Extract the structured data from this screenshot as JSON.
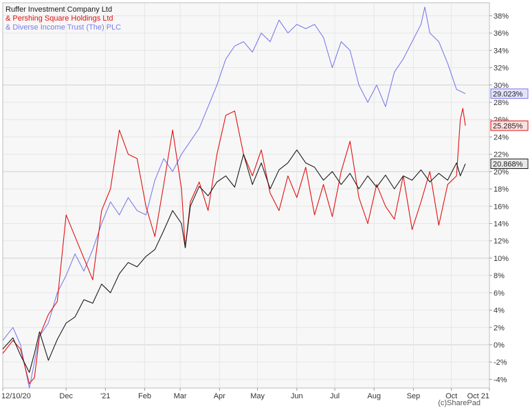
{
  "chart_data": {
    "type": "line",
    "title": "",
    "xlabel": "",
    "ylabel": "",
    "y_unit": "%",
    "ylim": [
      -5,
      39.5
    ],
    "y_ticks": [
      -4,
      -2,
      0,
      2,
      4,
      6,
      8,
      10,
      12,
      14,
      16,
      18,
      20,
      22,
      24,
      26,
      28,
      30,
      32,
      34,
      36,
      38
    ],
    "y_tick_labels": [
      "-4%",
      "-2%",
      "0%",
      "2%",
      "4%",
      "6%",
      "8%",
      "10%",
      "12%",
      "14%",
      "16%",
      "18%",
      "20%",
      "22%",
      "24%",
      "26%",
      "28%",
      "30%",
      "32%",
      "34%",
      "36%",
      "38%"
    ],
    "y_axis_side": "right",
    "grid": true,
    "legend_position": "top-left",
    "x_ticks": [
      {
        "label": "12/10/20",
        "date": "2020-10-12"
      },
      {
        "label": "Dec",
        "date": "2020-12-01"
      },
      {
        "label": "'21",
        "date": "2021-01-01"
      },
      {
        "label": "Feb",
        "date": "2021-02-01"
      },
      {
        "label": "Mar",
        "date": "2021-03-01"
      },
      {
        "label": "Apr",
        "date": "2021-04-01"
      },
      {
        "label": "May",
        "date": "2021-05-01"
      },
      {
        "label": "Jun",
        "date": "2021-06-01"
      },
      {
        "label": "Jul",
        "date": "2021-07-01"
      },
      {
        "label": "Aug",
        "date": "2021-08-01"
      },
      {
        "label": "Sep",
        "date": "2021-09-01"
      },
      {
        "label": "Oct",
        "date": "2021-10-01"
      },
      {
        "label": "Oct 21",
        "date": "2021-10-31"
      }
    ],
    "x_range": [
      "2020-10-12",
      "2021-10-31"
    ],
    "series": [
      {
        "name": "Ruffer Investment Company Ltd",
        "legend_label": "Ruffer Investment Company Ltd",
        "color": "#1a1a1a",
        "last_value_label": "20.868%",
        "points": [
          [
            "2020-10-12",
            -0.5
          ],
          [
            "2020-10-20",
            0.8
          ],
          [
            "2020-10-26",
            -1.2
          ],
          [
            "2020-11-02",
            -3.2
          ],
          [
            "2020-11-06",
            -1.0
          ],
          [
            "2020-11-10",
            1.5
          ],
          [
            "2020-11-17",
            -1.8
          ],
          [
            "2020-11-24",
            0.6
          ],
          [
            "2020-12-01",
            2.5
          ],
          [
            "2020-12-08",
            3.2
          ],
          [
            "2020-12-15",
            5.2
          ],
          [
            "2020-12-22",
            4.8
          ],
          [
            "2020-12-29",
            7.0
          ],
          [
            "2021-01-05",
            6.0
          ],
          [
            "2021-01-12",
            8.2
          ],
          [
            "2021-01-19",
            9.5
          ],
          [
            "2021-01-26",
            9.0
          ],
          [
            "2021-02-02",
            10.2
          ],
          [
            "2021-02-09",
            11.0
          ],
          [
            "2021-02-16",
            13.2
          ],
          [
            "2021-02-23",
            15.5
          ],
          [
            "2021-03-02",
            14.0
          ],
          [
            "2021-03-05",
            11.2
          ],
          [
            "2021-03-09",
            16.0
          ],
          [
            "2021-03-16",
            18.3
          ],
          [
            "2021-03-23",
            17.2
          ],
          [
            "2021-03-30",
            18.8
          ],
          [
            "2021-04-06",
            19.5
          ],
          [
            "2021-04-13",
            18.2
          ],
          [
            "2021-04-20",
            22.0
          ],
          [
            "2021-04-27",
            18.5
          ],
          [
            "2021-05-04",
            21.0
          ],
          [
            "2021-05-11",
            18.0
          ],
          [
            "2021-05-18",
            20.2
          ],
          [
            "2021-05-25",
            21.0
          ],
          [
            "2021-06-01",
            22.5
          ],
          [
            "2021-06-08",
            21.0
          ],
          [
            "2021-06-15",
            20.5
          ],
          [
            "2021-06-22",
            19.0
          ],
          [
            "2021-06-29",
            20.0
          ],
          [
            "2021-07-06",
            18.5
          ],
          [
            "2021-07-13",
            19.8
          ],
          [
            "2021-07-20",
            18.0
          ],
          [
            "2021-07-27",
            19.5
          ],
          [
            "2021-08-03",
            18.2
          ],
          [
            "2021-08-10",
            19.6
          ],
          [
            "2021-08-17",
            18.0
          ],
          [
            "2021-08-24",
            19.5
          ],
          [
            "2021-08-31",
            19.0
          ],
          [
            "2021-09-07",
            20.2
          ],
          [
            "2021-09-14",
            18.8
          ],
          [
            "2021-09-21",
            19.8
          ],
          [
            "2021-09-28",
            19.0
          ],
          [
            "2021-10-05",
            21.0
          ],
          [
            "2021-10-08",
            19.5
          ],
          [
            "2021-10-12",
            20.9
          ]
        ]
      },
      {
        "name": "Pershing Square Holdings Ltd",
        "legend_label": "& Pershing Square Holdings Ltd",
        "color": "#e01010",
        "last_value_label": "25.285%",
        "points": [
          [
            "2020-10-12",
            -1.0
          ],
          [
            "2020-10-20",
            0.5
          ],
          [
            "2020-10-26",
            -0.5
          ],
          [
            "2020-11-02",
            -4.5
          ],
          [
            "2020-11-06",
            -3.8
          ],
          [
            "2020-11-10",
            1.0
          ],
          [
            "2020-11-17",
            3.5
          ],
          [
            "2020-11-24",
            5.0
          ],
          [
            "2020-12-01",
            15.0
          ],
          [
            "2020-12-08",
            12.5
          ],
          [
            "2020-12-15",
            10.0
          ],
          [
            "2020-12-22",
            7.5
          ],
          [
            "2020-12-29",
            15.5
          ],
          [
            "2021-01-05",
            18.0
          ],
          [
            "2021-01-12",
            24.8
          ],
          [
            "2021-01-19",
            22.0
          ],
          [
            "2021-01-26",
            21.5
          ],
          [
            "2021-02-02",
            16.0
          ],
          [
            "2021-02-09",
            12.5
          ],
          [
            "2021-02-16",
            18.5
          ],
          [
            "2021-02-23",
            24.8
          ],
          [
            "2021-03-02",
            18.0
          ],
          [
            "2021-03-05",
            11.2
          ],
          [
            "2021-03-09",
            16.5
          ],
          [
            "2021-03-16",
            18.8
          ],
          [
            "2021-03-23",
            15.5
          ],
          [
            "2021-03-30",
            22.0
          ],
          [
            "2021-04-06",
            26.5
          ],
          [
            "2021-04-13",
            27.0
          ],
          [
            "2021-04-20",
            22.0
          ],
          [
            "2021-04-27",
            19.5
          ],
          [
            "2021-05-04",
            22.5
          ],
          [
            "2021-05-11",
            17.5
          ],
          [
            "2021-05-18",
            15.5
          ],
          [
            "2021-05-25",
            19.5
          ],
          [
            "2021-06-01",
            17.0
          ],
          [
            "2021-06-08",
            20.5
          ],
          [
            "2021-06-15",
            15.0
          ],
          [
            "2021-06-22",
            18.5
          ],
          [
            "2021-06-29",
            14.8
          ],
          [
            "2021-07-06",
            20.0
          ],
          [
            "2021-07-13",
            23.5
          ],
          [
            "2021-07-20",
            17.0
          ],
          [
            "2021-07-27",
            14.0
          ],
          [
            "2021-08-03",
            18.5
          ],
          [
            "2021-08-10",
            16.0
          ],
          [
            "2021-08-17",
            14.5
          ],
          [
            "2021-08-24",
            19.5
          ],
          [
            "2021-08-31",
            13.3
          ],
          [
            "2021-09-07",
            16.5
          ],
          [
            "2021-09-14",
            20.0
          ],
          [
            "2021-09-21",
            13.8
          ],
          [
            "2021-09-28",
            18.5
          ],
          [
            "2021-10-05",
            19.5
          ],
          [
            "2021-10-08",
            26.0
          ],
          [
            "2021-10-10",
            27.3
          ],
          [
            "2021-10-12",
            25.3
          ]
        ]
      },
      {
        "name": "Diverse Income Trust (The) PLC",
        "legend_label": "& Diverse Income Trust (The) PLC",
        "color": "#7b7bea",
        "last_value_label": "29.023%",
        "points": [
          [
            "2020-10-12",
            0.5
          ],
          [
            "2020-10-20",
            2.0
          ],
          [
            "2020-10-26",
            0.0
          ],
          [
            "2020-11-02",
            -5.0
          ],
          [
            "2020-11-06",
            -2.0
          ],
          [
            "2020-11-10",
            1.0
          ],
          [
            "2020-11-17",
            2.5
          ],
          [
            "2020-11-24",
            6.0
          ],
          [
            "2020-12-01",
            8.0
          ],
          [
            "2020-12-08",
            10.5
          ],
          [
            "2020-12-15",
            8.5
          ],
          [
            "2020-12-22",
            11.0
          ],
          [
            "2020-12-29",
            14.0
          ],
          [
            "2021-01-05",
            16.5
          ],
          [
            "2021-01-12",
            15.0
          ],
          [
            "2021-01-19",
            17.0
          ],
          [
            "2021-01-26",
            15.5
          ],
          [
            "2021-02-02",
            15.0
          ],
          [
            "2021-02-09",
            19.0
          ],
          [
            "2021-02-16",
            21.5
          ],
          [
            "2021-02-23",
            20.0
          ],
          [
            "2021-03-02",
            22.0
          ],
          [
            "2021-03-09",
            23.5
          ],
          [
            "2021-03-16",
            25.0
          ],
          [
            "2021-03-23",
            27.5
          ],
          [
            "2021-03-30",
            30.0
          ],
          [
            "2021-04-06",
            33.0
          ],
          [
            "2021-04-13",
            34.5
          ],
          [
            "2021-04-20",
            35.0
          ],
          [
            "2021-04-27",
            33.8
          ],
          [
            "2021-05-04",
            36.0
          ],
          [
            "2021-05-11",
            35.0
          ],
          [
            "2021-05-18",
            37.5
          ],
          [
            "2021-05-25",
            36.0
          ],
          [
            "2021-06-01",
            37.0
          ],
          [
            "2021-06-08",
            36.5
          ],
          [
            "2021-06-15",
            37.0
          ],
          [
            "2021-06-22",
            35.5
          ],
          [
            "2021-06-29",
            32.0
          ],
          [
            "2021-07-06",
            35.0
          ],
          [
            "2021-07-13",
            34.0
          ],
          [
            "2021-07-20",
            30.0
          ],
          [
            "2021-07-27",
            28.0
          ],
          [
            "2021-08-03",
            30.0
          ],
          [
            "2021-08-10",
            27.5
          ],
          [
            "2021-08-17",
            31.5
          ],
          [
            "2021-08-24",
            33.0
          ],
          [
            "2021-08-31",
            35.0
          ],
          [
            "2021-09-07",
            37.0
          ],
          [
            "2021-09-10",
            39.0
          ],
          [
            "2021-09-14",
            36.0
          ],
          [
            "2021-09-21",
            35.0
          ],
          [
            "2021-09-28",
            32.5
          ],
          [
            "2021-10-05",
            29.5
          ],
          [
            "2021-10-12",
            29.0
          ]
        ]
      }
    ]
  },
  "footer": {
    "copyright": "(c)SharePad"
  }
}
